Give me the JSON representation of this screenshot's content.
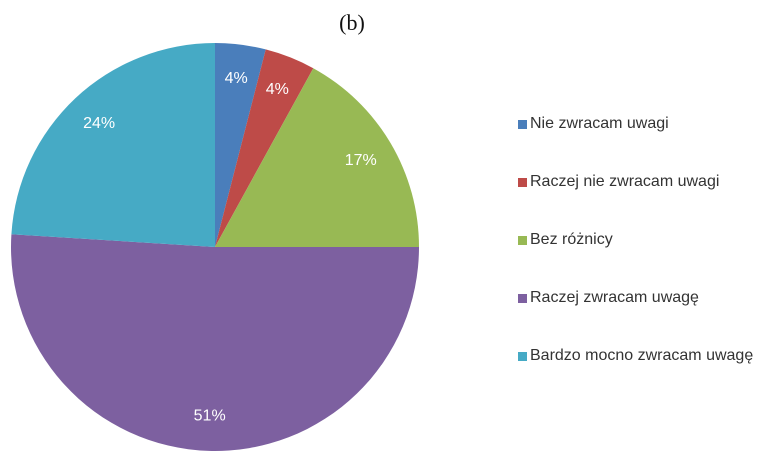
{
  "chart_data": {
    "type": "pie",
    "title": "(b)",
    "categories": [
      "Nie zwracam uwagi",
      "Raczej nie zwracam uwagi",
      "Bez różnicy",
      "Raczej zwracam uwagę",
      "Bardzo mocno zwracam uwagę"
    ],
    "values": [
      4,
      4,
      17,
      51,
      24
    ],
    "value_labels": [
      "4%",
      "4%",
      "17%",
      "51%",
      "24%"
    ],
    "colors": [
      "#4a7ebb",
      "#be4b48",
      "#98b954",
      "#7d60a0",
      "#46aac5"
    ],
    "legend": "right"
  }
}
